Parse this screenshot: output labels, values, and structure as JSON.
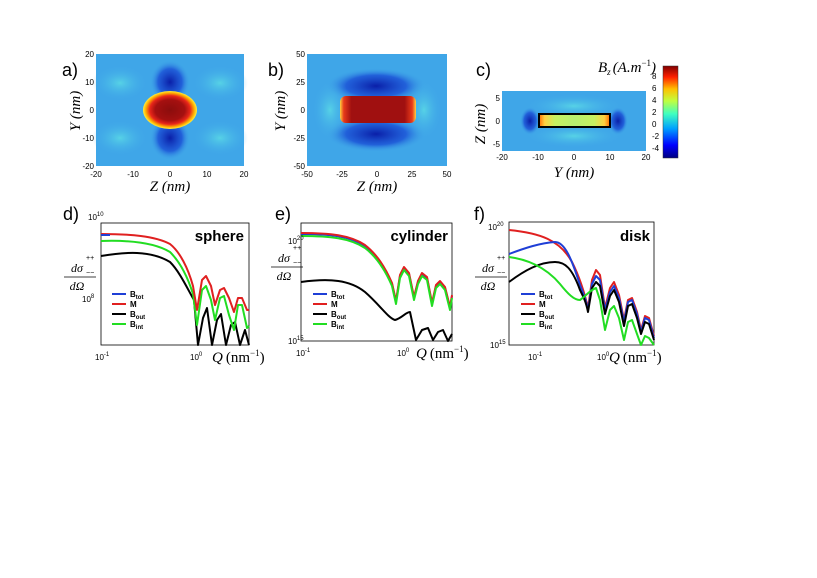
{
  "panels": {
    "a": {
      "label": "a)",
      "ylabel": "Y (nm)",
      "xlabel": "Z (nm)",
      "xticks": [
        "-20",
        "-10",
        "0",
        "10",
        "20"
      ],
      "yticks": [
        "20",
        "10",
        "0",
        "-10",
        "-20"
      ]
    },
    "b": {
      "label": "b)",
      "ylabel": "Y (nm)",
      "xlabel": "Z (nm)",
      "xticks": [
        "-50",
        "-25",
        "0",
        "25",
        "50"
      ],
      "yticks": [
        "50",
        "25",
        "0",
        "-25",
        "-50"
      ]
    },
    "c": {
      "label": "c)",
      "ylabel": "Z (nm)",
      "xlabel": "Y (nm)",
      "xticks": [
        "-20",
        "-10",
        "0",
        "10",
        "20"
      ],
      "yticks": [
        "5",
        "0",
        "-5"
      ]
    },
    "d": {
      "label": "d)",
      "shape": "sphere",
      "ytick_top": "10",
      "ytick_top_exp": "10",
      "ytick_mid": "10",
      "ytick_mid_exp": "8",
      "xtick_left": "10",
      "xtick_left_exp": "-1",
      "xtick_right": "10",
      "xtick_right_exp": "0"
    },
    "e": {
      "label": "e)",
      "shape": "cylinder",
      "ytick_top": "10",
      "ytick_top_exp": "20",
      "ytick_bot": "10",
      "ytick_bot_exp": "15",
      "xtick_left": "10",
      "xtick_left_exp": "-1",
      "xtick_right": "10",
      "xtick_right_exp": "0"
    },
    "f": {
      "label": "f)",
      "shape": "disk",
      "ytick_top": "10",
      "ytick_top_exp": "20",
      "ytick_bot": "10",
      "ytick_bot_exp": "15",
      "xtick_left": "10",
      "xtick_left_exp": "-1",
      "xtick_right": "10",
      "xtick_right_exp": "0"
    }
  },
  "colorbar": {
    "title": "B",
    "title_sub": "z",
    "title_units": "(A.m",
    "title_units_exp": "−1",
    "title_close": ")",
    "ticks": [
      "8",
      "6",
      "4",
      "2",
      "0",
      "-2",
      "-4"
    ]
  },
  "cross_section_ylabel": {
    "num": "dσ",
    "num_sup": "++",
    "num_sub": "−−",
    "den": "dΩ"
  },
  "q_label": {
    "q": "Q",
    "unit": "(nm",
    "unit_exp": "−1",
    "close": ")"
  },
  "legend": [
    {
      "label": "B",
      "sub": "tot",
      "color": "#1f3fd6"
    },
    {
      "label": "M",
      "sub": "",
      "color": "#e02020"
    },
    {
      "label": "B",
      "sub": "out",
      "color": "#000000"
    },
    {
      "label": "B",
      "sub": "int",
      "color": "#22dd22"
    }
  ],
  "colors": {
    "map_bg": "#3fa6e8",
    "cyl_box": "#000000"
  }
}
